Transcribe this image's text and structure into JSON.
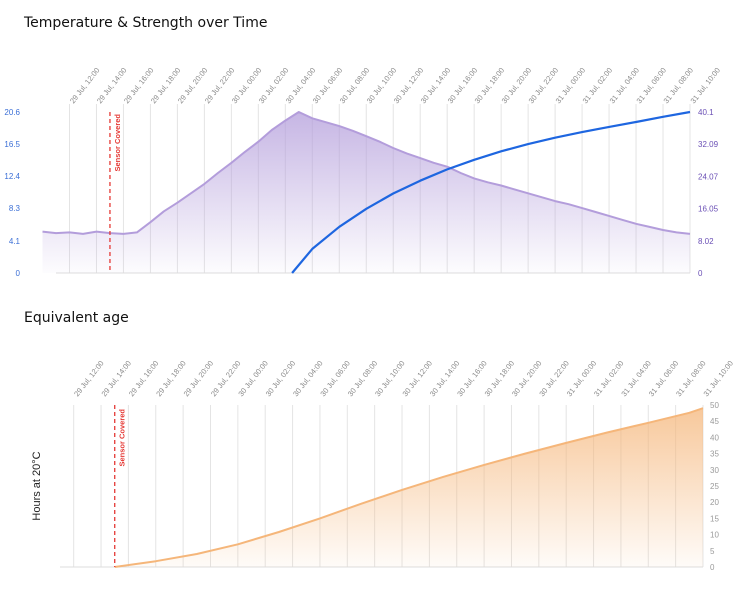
{
  "chart_data": [
    {
      "type": "line",
      "title": "Temperature & Strength over Time",
      "x_ticks": [
        "29 Jul, 12:00",
        "29 Jul, 14:00",
        "29 Jul, 16:00",
        "29 Jul, 18:00",
        "29 Jul, 20:00",
        "29 Jul, 22:00",
        "30 Jul, 00:00",
        "30 Jul, 02:00",
        "30 Jul, 04:00",
        "30 Jul, 06:00",
        "30 Jul, 08:00",
        "30 Jul, 10:00",
        "30 Jul, 12:00",
        "30 Jul, 14:00",
        "30 Jul, 16:00",
        "30 Jul, 18:00",
        "30 Jul, 20:00",
        "30 Jul, 22:00",
        "31 Jul, 00:00",
        "31 Jul, 02:00",
        "31 Jul, 04:00",
        "31 Jul, 06:00",
        "31 Jul, 08:00",
        "31 Jul, 10:00"
      ],
      "y_left_ticks": [
        "0",
        "4.1",
        "8.3",
        "12.4",
        "16.5",
        "20.6"
      ],
      "y_right_ticks": [
        "0",
        "8.02",
        "16.05",
        "24.07",
        "32.09",
        "40.1"
      ],
      "ylim_left": [
        0,
        20.6
      ],
      "ylim_right": [
        0,
        40.1
      ],
      "annotation": "Sensor Covered",
      "annotation_x_hours": 15,
      "grid": true,
      "series": [
        {
          "axis": "left",
          "color": "#b39ddb",
          "x_hours": [
            10,
            11,
            12,
            13,
            14,
            15,
            16,
            17,
            18,
            19,
            20,
            21,
            22,
            23,
            24,
            25,
            26,
            27,
            28,
            29,
            30,
            31,
            32,
            33,
            34,
            35,
            36,
            37,
            38,
            39,
            40,
            41,
            42,
            43,
            44,
            45,
            46,
            47,
            48,
            49,
            50,
            51,
            52,
            53,
            54,
            55,
            56,
            57,
            58
          ],
          "values": [
            5.3,
            5.1,
            5.2,
            5.0,
            5.3,
            5.1,
            5.0,
            5.2,
            6.5,
            7.9,
            9.0,
            10.2,
            11.4,
            12.8,
            14.1,
            15.5,
            16.8,
            18.3,
            19.5,
            20.6,
            19.8,
            19.3,
            18.8,
            18.2,
            17.5,
            16.8,
            16.0,
            15.3,
            14.7,
            14.1,
            13.6,
            12.8,
            12.1,
            11.6,
            11.2,
            10.7,
            10.2,
            9.7,
            9.2,
            8.8,
            8.3,
            7.8,
            7.3,
            6.8,
            6.3,
            5.9,
            5.5,
            5.2,
            5.0
          ]
        },
        {
          "axis": "right",
          "color": "#1e66e0",
          "x_hours": [
            28.5,
            30,
            32,
            34,
            36,
            38,
            40,
            42,
            44,
            46,
            48,
            50,
            52,
            54,
            56,
            58
          ],
          "values": [
            0,
            6.0,
            11.5,
            16.0,
            19.8,
            23.0,
            25.8,
            28.2,
            30.3,
            32.1,
            33.7,
            35.1,
            36.4,
            37.6,
            38.9,
            40.1
          ]
        }
      ]
    },
    {
      "type": "area",
      "title": "Equivalent age",
      "ylabel": "Hours at 20°C",
      "x_ticks": [
        "29 Jul, 12:00",
        "29 Jul, 14:00",
        "29 Jul, 16:00",
        "29 Jul, 18:00",
        "29 Jul, 20:00",
        "29 Jul, 22:00",
        "30 Jul, 00:00",
        "30 Jul, 02:00",
        "30 Jul, 04:00",
        "30 Jul, 06:00",
        "30 Jul, 08:00",
        "30 Jul, 10:00",
        "30 Jul, 12:00",
        "30 Jul, 14:00",
        "30 Jul, 16:00",
        "30 Jul, 18:00",
        "30 Jul, 20:00",
        "30 Jul, 22:00",
        "31 Jul, 00:00",
        "31 Jul, 02:00",
        "31 Jul, 04:00",
        "31 Jul, 06:00",
        "31 Jul, 08:00",
        "31 Jul, 10:00"
      ],
      "y_ticks": [
        "0",
        "5",
        "10",
        "15",
        "20",
        "25",
        "30",
        "35",
        "40",
        "45",
        "50"
      ],
      "ylim": [
        0,
        50
      ],
      "annotation": "Sensor Covered",
      "annotation_x_hours": 15,
      "grid": true,
      "series": [
        {
          "color": "#f5b67a",
          "x_hours": [
            15,
            18,
            21,
            24,
            27,
            30,
            33,
            36,
            39,
            42,
            45,
            48,
            51,
            54,
            57,
            58
          ],
          "values": [
            0,
            1.8,
            4.0,
            7.0,
            10.8,
            15.0,
            19.5,
            23.8,
            27.8,
            31.5,
            35.0,
            38.3,
            41.5,
            44.5,
            47.6,
            49.0
          ]
        }
      ]
    }
  ]
}
